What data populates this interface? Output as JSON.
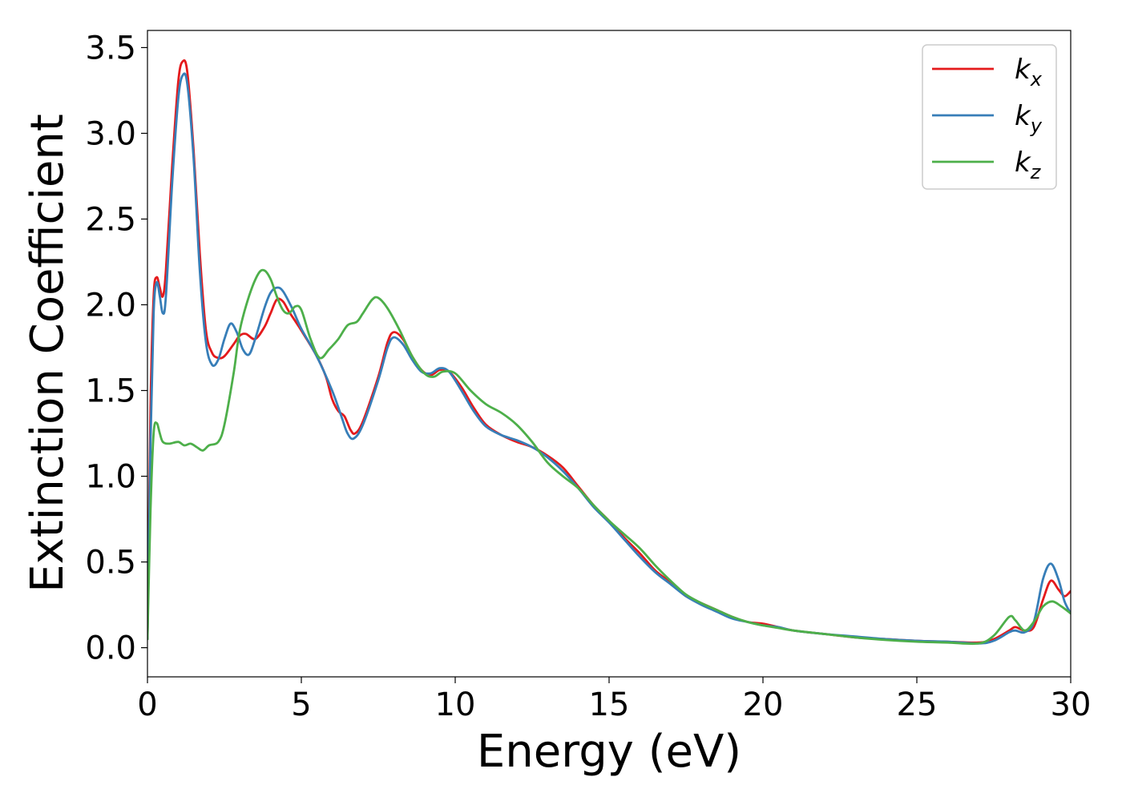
{
  "chart_data": {
    "type": "line",
    "xlabel": "Energy (eV)",
    "ylabel": "Extinction Coefficient",
    "xlim": [
      0,
      30
    ],
    "ylim": [
      -0.17,
      3.6
    ],
    "xticks": [
      0,
      5,
      10,
      15,
      20,
      25,
      30
    ],
    "xtick_labels": [
      "0",
      "5",
      "10",
      "15",
      "20",
      "25",
      "30"
    ],
    "yticks": [
      0.0,
      0.5,
      1.0,
      1.5,
      2.0,
      2.5,
      3.0,
      3.5
    ],
    "ytick_labels": [
      "0.0",
      "0.5",
      "1.0",
      "1.5",
      "2.0",
      "2.5",
      "3.0",
      "3.5"
    ],
    "grid": false,
    "legend_position": "top-right",
    "series": [
      {
        "name": "k_x",
        "label_base": "k",
        "label_sub": "x",
        "color": "#e41a1c",
        "points": [
          [
            0,
            0.05
          ],
          [
            0.1,
            1.4
          ],
          [
            0.2,
            2.05
          ],
          [
            0.3,
            2.16
          ],
          [
            0.4,
            2.1
          ],
          [
            0.5,
            2.05
          ],
          [
            0.6,
            2.2
          ],
          [
            0.8,
            2.8
          ],
          [
            1.0,
            3.3
          ],
          [
            1.15,
            3.42
          ],
          [
            1.3,
            3.35
          ],
          [
            1.5,
            2.9
          ],
          [
            1.7,
            2.3
          ],
          [
            1.9,
            1.85
          ],
          [
            2.1,
            1.72
          ],
          [
            2.3,
            1.69
          ],
          [
            2.5,
            1.7
          ],
          [
            2.8,
            1.77
          ],
          [
            3.0,
            1.82
          ],
          [
            3.2,
            1.83
          ],
          [
            3.5,
            1.8
          ],
          [
            3.8,
            1.87
          ],
          [
            4.0,
            1.95
          ],
          [
            4.2,
            2.03
          ],
          [
            4.4,
            2.02
          ],
          [
            4.6,
            1.96
          ],
          [
            5.0,
            1.85
          ],
          [
            5.5,
            1.7
          ],
          [
            5.8,
            1.58
          ],
          [
            6.0,
            1.45
          ],
          [
            6.2,
            1.38
          ],
          [
            6.4,
            1.35
          ],
          [
            6.6,
            1.27
          ],
          [
            6.75,
            1.25
          ],
          [
            7.0,
            1.32
          ],
          [
            7.5,
            1.58
          ],
          [
            7.8,
            1.78
          ],
          [
            8.0,
            1.84
          ],
          [
            8.3,
            1.8
          ],
          [
            8.6,
            1.7
          ],
          [
            8.9,
            1.62
          ],
          [
            9.2,
            1.59
          ],
          [
            9.5,
            1.62
          ],
          [
            9.8,
            1.61
          ],
          [
            10.2,
            1.52
          ],
          [
            10.6,
            1.4
          ],
          [
            11.0,
            1.3
          ],
          [
            11.5,
            1.24
          ],
          [
            12.0,
            1.2
          ],
          [
            12.5,
            1.17
          ],
          [
            13.0,
            1.12
          ],
          [
            13.5,
            1.05
          ],
          [
            14.0,
            0.94
          ],
          [
            14.5,
            0.83
          ],
          [
            15.0,
            0.74
          ],
          [
            15.5,
            0.64
          ],
          [
            16.0,
            0.55
          ],
          [
            16.5,
            0.45
          ],
          [
            17.0,
            0.38
          ],
          [
            17.5,
            0.3
          ],
          [
            18.0,
            0.26
          ],
          [
            18.5,
            0.22
          ],
          [
            19.0,
            0.18
          ],
          [
            19.5,
            0.15
          ],
          [
            20.0,
            0.14
          ],
          [
            20.5,
            0.12
          ],
          [
            21.0,
            0.1
          ],
          [
            22.0,
            0.08
          ],
          [
            23.0,
            0.06
          ],
          [
            24.0,
            0.05
          ],
          [
            25.0,
            0.04
          ],
          [
            26.0,
            0.035
          ],
          [
            27.0,
            0.03
          ],
          [
            27.5,
            0.05
          ],
          [
            28.0,
            0.1
          ],
          [
            28.2,
            0.12
          ],
          [
            28.5,
            0.1
          ],
          [
            28.8,
            0.12
          ],
          [
            29.1,
            0.28
          ],
          [
            29.35,
            0.39
          ],
          [
            29.6,
            0.34
          ],
          [
            29.8,
            0.3
          ],
          [
            30.0,
            0.33
          ]
        ]
      },
      {
        "name": "k_y",
        "label_base": "k",
        "label_sub": "y",
        "color": "#377eb8",
        "points": [
          [
            0,
            0.05
          ],
          [
            0.1,
            1.2
          ],
          [
            0.2,
            1.95
          ],
          [
            0.3,
            2.13
          ],
          [
            0.4,
            2.05
          ],
          [
            0.5,
            1.95
          ],
          [
            0.6,
            2.05
          ],
          [
            0.8,
            2.7
          ],
          [
            1.0,
            3.2
          ],
          [
            1.15,
            3.34
          ],
          [
            1.3,
            3.28
          ],
          [
            1.5,
            2.85
          ],
          [
            1.7,
            2.2
          ],
          [
            1.9,
            1.78
          ],
          [
            2.1,
            1.65
          ],
          [
            2.3,
            1.68
          ],
          [
            2.5,
            1.8
          ],
          [
            2.7,
            1.89
          ],
          [
            2.9,
            1.84
          ],
          [
            3.1,
            1.74
          ],
          [
            3.3,
            1.71
          ],
          [
            3.5,
            1.8
          ],
          [
            3.8,
            1.98
          ],
          [
            4.0,
            2.07
          ],
          [
            4.2,
            2.1
          ],
          [
            4.4,
            2.08
          ],
          [
            4.7,
            1.98
          ],
          [
            5.0,
            1.86
          ],
          [
            5.5,
            1.7
          ],
          [
            6.0,
            1.5
          ],
          [
            6.3,
            1.35
          ],
          [
            6.5,
            1.25
          ],
          [
            6.7,
            1.22
          ],
          [
            7.0,
            1.3
          ],
          [
            7.5,
            1.56
          ],
          [
            7.8,
            1.75
          ],
          [
            8.0,
            1.81
          ],
          [
            8.3,
            1.77
          ],
          [
            8.6,
            1.68
          ],
          [
            8.9,
            1.61
          ],
          [
            9.2,
            1.6
          ],
          [
            9.5,
            1.63
          ],
          [
            9.8,
            1.61
          ],
          [
            10.2,
            1.5
          ],
          [
            10.6,
            1.38
          ],
          [
            11.0,
            1.29
          ],
          [
            11.5,
            1.24
          ],
          [
            12.0,
            1.21
          ],
          [
            12.5,
            1.17
          ],
          [
            13.0,
            1.11
          ],
          [
            13.5,
            1.03
          ],
          [
            14.0,
            0.93
          ],
          [
            14.5,
            0.82
          ],
          [
            15.0,
            0.73
          ],
          [
            15.5,
            0.63
          ],
          [
            16.0,
            0.53
          ],
          [
            16.5,
            0.44
          ],
          [
            17.0,
            0.37
          ],
          [
            17.5,
            0.3
          ],
          [
            18.0,
            0.25
          ],
          [
            18.5,
            0.21
          ],
          [
            19.0,
            0.17
          ],
          [
            19.5,
            0.15
          ],
          [
            20.0,
            0.13
          ],
          [
            20.5,
            0.12
          ],
          [
            21.0,
            0.1
          ],
          [
            22.0,
            0.08
          ],
          [
            23.0,
            0.065
          ],
          [
            24.0,
            0.05
          ],
          [
            25.0,
            0.04
          ],
          [
            26.0,
            0.035
          ],
          [
            27.0,
            0.025
          ],
          [
            27.5,
            0.04
          ],
          [
            28.0,
            0.09
          ],
          [
            28.2,
            0.1
          ],
          [
            28.5,
            0.09
          ],
          [
            28.8,
            0.15
          ],
          [
            29.1,
            0.4
          ],
          [
            29.35,
            0.49
          ],
          [
            29.6,
            0.4
          ],
          [
            29.8,
            0.27
          ],
          [
            30.0,
            0.2
          ]
        ]
      },
      {
        "name": "k_z",
        "label_base": "k",
        "label_sub": "z",
        "color": "#4daf4a",
        "points": [
          [
            0,
            0.05
          ],
          [
            0.1,
            0.8
          ],
          [
            0.2,
            1.25
          ],
          [
            0.3,
            1.31
          ],
          [
            0.4,
            1.25
          ],
          [
            0.5,
            1.2
          ],
          [
            0.7,
            1.19
          ],
          [
            1.0,
            1.2
          ],
          [
            1.2,
            1.18
          ],
          [
            1.4,
            1.19
          ],
          [
            1.6,
            1.17
          ],
          [
            1.8,
            1.15
          ],
          [
            2.0,
            1.18
          ],
          [
            2.3,
            1.2
          ],
          [
            2.5,
            1.3
          ],
          [
            2.8,
            1.6
          ],
          [
            3.0,
            1.85
          ],
          [
            3.3,
            2.05
          ],
          [
            3.6,
            2.18
          ],
          [
            3.8,
            2.2
          ],
          [
            4.0,
            2.15
          ],
          [
            4.2,
            2.05
          ],
          [
            4.4,
            1.97
          ],
          [
            4.6,
            1.95
          ],
          [
            4.8,
            1.99
          ],
          [
            5.0,
            1.97
          ],
          [
            5.3,
            1.8
          ],
          [
            5.6,
            1.69
          ],
          [
            5.9,
            1.74
          ],
          [
            6.2,
            1.8
          ],
          [
            6.5,
            1.88
          ],
          [
            6.8,
            1.9
          ],
          [
            7.0,
            1.95
          ],
          [
            7.3,
            2.03
          ],
          [
            7.5,
            2.04
          ],
          [
            7.8,
            1.98
          ],
          [
            8.2,
            1.85
          ],
          [
            8.6,
            1.7
          ],
          [
            9.0,
            1.6
          ],
          [
            9.3,
            1.58
          ],
          [
            9.6,
            1.61
          ],
          [
            10.0,
            1.6
          ],
          [
            10.5,
            1.5
          ],
          [
            11.0,
            1.42
          ],
          [
            11.5,
            1.37
          ],
          [
            12.0,
            1.3
          ],
          [
            12.5,
            1.2
          ],
          [
            13.0,
            1.08
          ],
          [
            13.5,
            1.0
          ],
          [
            14.0,
            0.93
          ],
          [
            14.5,
            0.83
          ],
          [
            15.0,
            0.74
          ],
          [
            15.5,
            0.66
          ],
          [
            16.0,
            0.58
          ],
          [
            16.5,
            0.48
          ],
          [
            17.0,
            0.39
          ],
          [
            17.5,
            0.31
          ],
          [
            18.0,
            0.26
          ],
          [
            18.5,
            0.22
          ],
          [
            19.0,
            0.18
          ],
          [
            19.5,
            0.15
          ],
          [
            20.0,
            0.13
          ],
          [
            20.5,
            0.115
          ],
          [
            21.0,
            0.1
          ],
          [
            22.0,
            0.08
          ],
          [
            23.0,
            0.06
          ],
          [
            24.0,
            0.045
          ],
          [
            25.0,
            0.035
          ],
          [
            26.0,
            0.03
          ],
          [
            27.0,
            0.025
          ],
          [
            27.5,
            0.07
          ],
          [
            28.0,
            0.18
          ],
          [
            28.2,
            0.16
          ],
          [
            28.5,
            0.1
          ],
          [
            28.8,
            0.15
          ],
          [
            29.1,
            0.24
          ],
          [
            29.4,
            0.27
          ],
          [
            29.7,
            0.24
          ],
          [
            30.0,
            0.2
          ]
        ]
      }
    ]
  }
}
